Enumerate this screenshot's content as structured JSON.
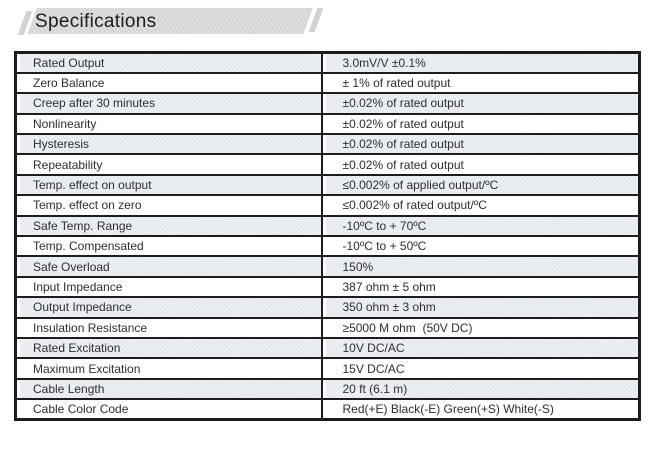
{
  "header": {
    "title": "Specifications"
  },
  "colors": {
    "banner": "#d2d2d2",
    "banner_text": "#1b1b22",
    "alt_row": "#e2e7ed",
    "border": "#1d1d1d",
    "cell_text": "#2e2e2e",
    "page_bg": "#ffffff"
  },
  "table": {
    "rows": [
      {
        "label": "Rated Output",
        "value": "3.0mV/V ±0.1%"
      },
      {
        "label": "Zero Balance",
        "value": "± 1% of rated output"
      },
      {
        "label": "Creep after 30 minutes",
        "value": "±0.02% of rated output"
      },
      {
        "label": "Nonlinearity",
        "value": "±0.02% of rated output"
      },
      {
        "label": "Hysteresis",
        "value": "±0.02% of rated output"
      },
      {
        "label": "Repeatability",
        "value": "±0.02% of rated output"
      },
      {
        "label": "Temp. effect on output",
        "value": "≤0.002% of applied output/ºC"
      },
      {
        "label": "Temp. effect on zero",
        "value": "≤0.002% of rated output/ºC"
      },
      {
        "label": "Safe Temp. Range",
        "value": "-10ºC to + 70ºC"
      },
      {
        "label": "Temp. Compensated",
        "value": "-10ºC to + 50ºC"
      },
      {
        "label": "Safe Overload",
        "value": "150%"
      },
      {
        "label": "Input Impedance",
        "value": "387 ohm ± 5 ohm"
      },
      {
        "label": "Output Impedance",
        "value": "350 ohm ± 3 ohm"
      },
      {
        "label": "Insulation Resistance",
        "value": "≥5000 M ohm  (50V DC)"
      },
      {
        "label": "Rated Excitation",
        "value": "10V DC/AC"
      },
      {
        "label": "Maximum Excitation",
        "value": "15V DC/AC"
      },
      {
        "label": "Cable Length",
        "value": "20 ft (6.1 m)"
      },
      {
        "label": "Cable Color Code",
        "value": "Red(+E) Black(-E) Green(+S) White(-S)"
      }
    ]
  }
}
